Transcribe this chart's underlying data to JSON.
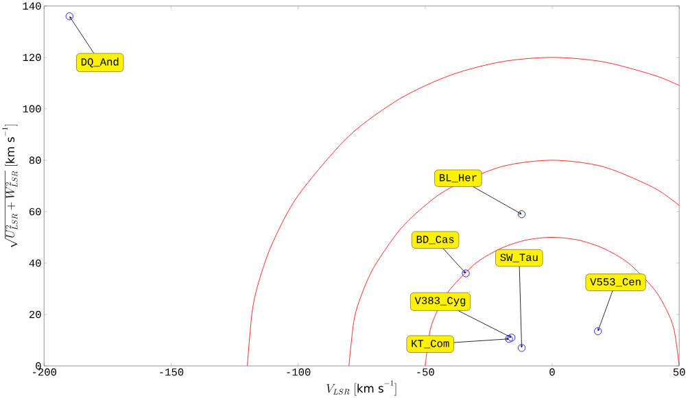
{
  "chart_data": {
    "type": "scatter",
    "xlabel": "V_{LSR}\\ [\\mathrm{km\\ s}^{-1}]",
    "ylabel": "\\sqrt{U_{LSR}^2+W_{LSR}^2}\\ [\\mathrm{km\\ s}^{-1}]",
    "xlim": [
      -200,
      50
    ],
    "ylim": [
      0,
      140
    ],
    "xticks": [
      -200,
      -150,
      -100,
      -50,
      0,
      50
    ],
    "yticks": [
      0,
      20,
      40,
      60,
      80,
      100,
      120,
      140
    ],
    "grid": false,
    "series": [
      {
        "color": "#0000ff",
        "marker": "circle",
        "x": [
          -190,
          -12,
          -34,
          -12,
          -16,
          -17,
          18
        ],
        "values": [
          136,
          59,
          36,
          7,
          11,
          10.5,
          13.5
        ]
      },
      {
        "type": "line",
        "color": "#ff0000",
        "marker": "none",
        "x": [
          -50,
          -48,
          -45,
          -40,
          -30,
          -20,
          -10,
          0,
          10,
          20,
          30,
          40,
          45,
          48,
          50
        ],
        "values": [
          0,
          14,
          21.8,
          30,
          40,
          45.8,
          49,
          50,
          49,
          45.8,
          40,
          30,
          21.8,
          14,
          0
        ]
      },
      {
        "type": "line",
        "color": "#ff0000",
        "marker": "none",
        "x": [
          -80,
          -78,
          -75,
          -70,
          -60,
          -50,
          -40,
          -20,
          0,
          20,
          40,
          50
        ],
        "values": [
          0,
          17.8,
          27.8,
          38.7,
          52.9,
          62.4,
          69.3,
          77.5,
          80,
          77.5,
          69.3,
          62.4
        ]
      },
      {
        "type": "line",
        "color": "#ff0000",
        "marker": "none",
        "x": [
          -120,
          -118,
          -115,
          -110,
          -100,
          -80,
          -60,
          -40,
          -20,
          0,
          20,
          40,
          50
        ],
        "values": [
          0,
          21.8,
          34.3,
          48,
          66.3,
          89.4,
          103.9,
          113.1,
          118.3,
          120,
          118.3,
          113.1,
          109.1
        ]
      }
    ],
    "annotations": [
      {
        "text": "DQ_And",
        "x": -190,
        "y": 136
      },
      {
        "text": "BL_Her",
        "x": -12,
        "y": 59
      },
      {
        "text": "BD_Cas",
        "x": -34,
        "y": 36
      },
      {
        "text": "SW_Tau",
        "x": -12,
        "y": 7
      },
      {
        "text": "V383_Cyg",
        "x": -16,
        "y": 11
      },
      {
        "text": "KT_Com",
        "x": -17,
        "y": 10.5
      },
      {
        "text": "V553_Cen",
        "x": 18,
        "y": 13.5
      }
    ]
  }
}
